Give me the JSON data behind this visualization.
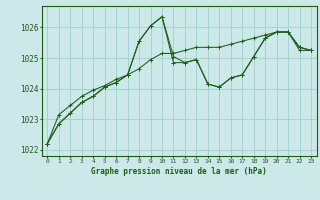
{
  "title": "Graphe pression niveau de la mer (hPa)",
  "bg_color": "#cce8e8",
  "line_color": "#1a5c1a",
  "grid_color": "#9ecece",
  "xlim": [
    -0.5,
    23.5
  ],
  "ylim": [
    1021.8,
    1026.7
  ],
  "yticks": [
    1022,
    1023,
    1024,
    1025,
    1026
  ],
  "xticks": [
    0,
    1,
    2,
    3,
    4,
    5,
    6,
    7,
    8,
    9,
    10,
    11,
    12,
    13,
    14,
    15,
    16,
    17,
    18,
    19,
    20,
    21,
    22,
    23
  ],
  "series": [
    [
      1022.2,
      1022.85,
      1023.2,
      1023.55,
      1023.75,
      1024.05,
      1024.2,
      1024.45,
      1025.55,
      1026.05,
      1026.35,
      1024.85,
      1024.85,
      1024.95,
      1024.15,
      1024.05,
      1024.35,
      1024.45,
      1025.05,
      1025.65,
      1025.85,
      1025.85,
      1025.35,
      1025.25
    ],
    [
      1022.2,
      1022.85,
      1023.2,
      1023.55,
      1023.75,
      1024.05,
      1024.2,
      1024.45,
      1025.55,
      1026.05,
      1026.35,
      1025.05,
      1024.85,
      1024.95,
      1024.15,
      1024.05,
      1024.35,
      1024.45,
      1025.05,
      1025.65,
      1025.85,
      1025.85,
      1025.35,
      1025.25
    ],
    [
      1022.2,
      1023.15,
      1023.45,
      1023.75,
      1023.95,
      1024.1,
      1024.3,
      1024.45,
      1024.65,
      1024.95,
      1025.15,
      1025.15,
      1025.25,
      1025.35,
      1025.35,
      1025.35,
      1025.45,
      1025.55,
      1025.65,
      1025.75,
      1025.85,
      1025.85,
      1025.25,
      1025.25
    ]
  ]
}
